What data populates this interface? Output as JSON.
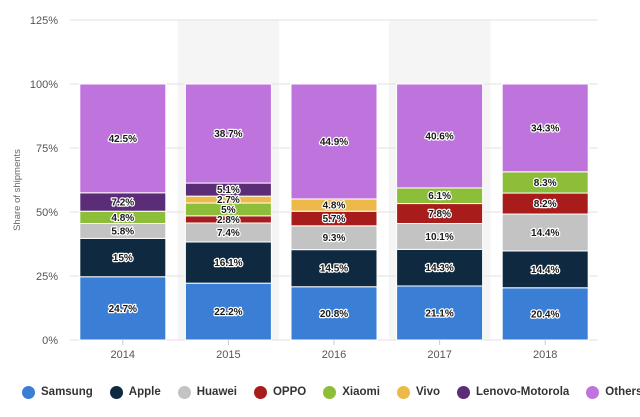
{
  "chart_data": {
    "type": "bar",
    "stacked": true,
    "ylabel": "Share of shipments",
    "xlabel": "",
    "ylim": [
      0,
      125
    ],
    "yticks": [
      "0%",
      "25%",
      "50%",
      "75%",
      "100%",
      "125%"
    ],
    "ytick_values": [
      0,
      25,
      50,
      75,
      100,
      125
    ],
    "grid": true,
    "legend_position": "bottom",
    "categories": [
      "2014",
      "2015",
      "2016",
      "2017",
      "2018"
    ],
    "series": [
      {
        "name": "Samsung",
        "color": "#3a7fd5",
        "values": [
          24.7,
          22.2,
          20.8,
          21.1,
          20.4
        ],
        "labels": [
          "24.7%",
          "22.2%",
          "20.8%",
          "21.1%",
          "20.4%"
        ]
      },
      {
        "name": "Apple",
        "color": "#0f2a40",
        "values": [
          15,
          16.1,
          14.5,
          14.3,
          14.4
        ],
        "labels": [
          "15%",
          "16.1%",
          "14.5%",
          "14.3%",
          "14.4%"
        ]
      },
      {
        "name": "Huawei",
        "color": "#c3c3c3",
        "values": [
          5.8,
          7.4,
          9.3,
          10.1,
          14.4
        ],
        "labels": [
          "5.8%",
          "7.4%",
          "9.3%",
          "10.1%",
          "14.4%"
        ]
      },
      {
        "name": "OPPO",
        "color": "#a81c1c",
        "values": [
          0,
          2.8,
          5.7,
          7.8,
          8.2
        ],
        "labels": [
          "",
          "2.8%",
          "5.7%",
          "7.8%",
          "8.2%"
        ]
      },
      {
        "name": "Xiaomi",
        "color": "#8cbe3a",
        "values": [
          4.8,
          5,
          0,
          6.1,
          8.3
        ],
        "labels": [
          "4.8%",
          "5%",
          "",
          "6.1%",
          "8.3%"
        ]
      },
      {
        "name": "Vivo",
        "color": "#edb94a",
        "values": [
          0,
          2.7,
          4.8,
          0,
          0
        ],
        "labels": [
          "",
          "2.7%",
          "4.8%",
          "",
          ""
        ]
      },
      {
        "name": "Lenovo-Motorola",
        "color": "#5b2d77",
        "values": [
          7.2,
          5.1,
          0,
          0,
          0
        ],
        "labels": [
          "7.2%",
          "5.1%",
          "",
          "",
          ""
        ]
      },
      {
        "name": "Others",
        "color": "#bf73dc",
        "values": [
          42.5,
          38.7,
          44.9,
          40.6,
          34.3
        ],
        "labels": [
          "42.5%",
          "38.7%",
          "44.9%",
          "40.6%",
          "34.3%"
        ]
      }
    ]
  }
}
